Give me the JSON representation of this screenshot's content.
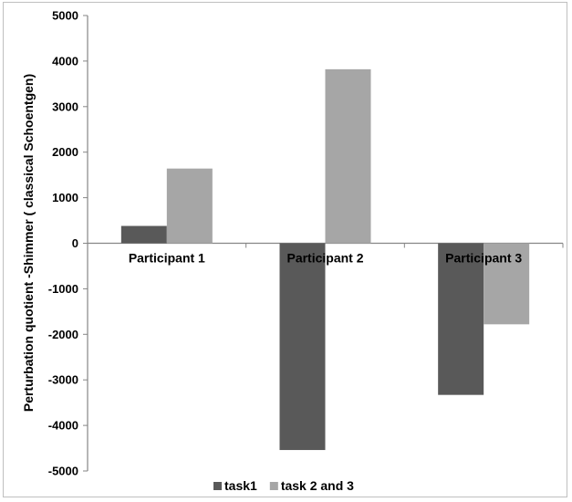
{
  "chart_data": {
    "type": "bar",
    "categories": [
      "Participant 1",
      "Participant 2",
      "Participant 3"
    ],
    "series": [
      {
        "name": "task1",
        "values": [
          380,
          -4540,
          -3330
        ],
        "color": "#595959"
      },
      {
        "name": "task 2 and 3",
        "values": [
          1640,
          3820,
          -1780
        ],
        "color": "#a6a6a6"
      }
    ],
    "ylabel": "Perturbation quotient -Shimmer  ( classical Schoentgen)",
    "xlabel": "",
    "ylim": [
      -5000,
      5000
    ],
    "yticks": [
      5000,
      4000,
      3000,
      2000,
      1000,
      0,
      -1000,
      -2000,
      -3000,
      -4000,
      -5000
    ],
    "grid": false,
    "legend": "bottom"
  }
}
